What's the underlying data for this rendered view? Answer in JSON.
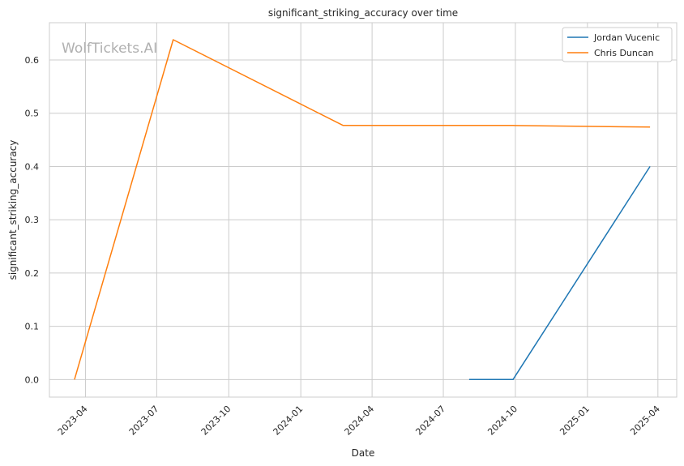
{
  "chart_data": {
    "type": "line",
    "title": "significant_striking_accuracy over time",
    "xlabel": "Date",
    "ylabel": "significant_striking_accuracy",
    "watermark": "WolfTickets.AI",
    "x_ticks": [
      "2023-04",
      "2023-07",
      "2023-10",
      "2024-01",
      "2024-04",
      "2024-07",
      "2024-10",
      "2025-01",
      "2025-04"
    ],
    "y_ticks": [
      "0.0",
      "0.1",
      "0.2",
      "0.3",
      "0.4",
      "0.5",
      "0.6"
    ],
    "ylim": [
      -0.033,
      0.67
    ],
    "xlim": [
      "2023-02-14",
      "2025-04-25"
    ],
    "grid": true,
    "legend_position": "top-right",
    "series": [
      {
        "name": "Jordan Vucenic",
        "color": "#1f77b4",
        "points": [
          {
            "x": "2024-08-03",
            "y": 0.0
          },
          {
            "x": "2024-09-28",
            "y": 0.0
          },
          {
            "x": "2025-03-22",
            "y": 0.4
          }
        ]
      },
      {
        "name": "Chris Duncan",
        "color": "#ff7f0e",
        "points": [
          {
            "x": "2023-03-18",
            "y": 0.0
          },
          {
            "x": "2023-07-22",
            "y": 0.638
          },
          {
            "x": "2024-02-24",
            "y": 0.477
          },
          {
            "x": "2024-09-28",
            "y": 0.477
          },
          {
            "x": "2025-03-22",
            "y": 0.474
          }
        ]
      }
    ]
  }
}
